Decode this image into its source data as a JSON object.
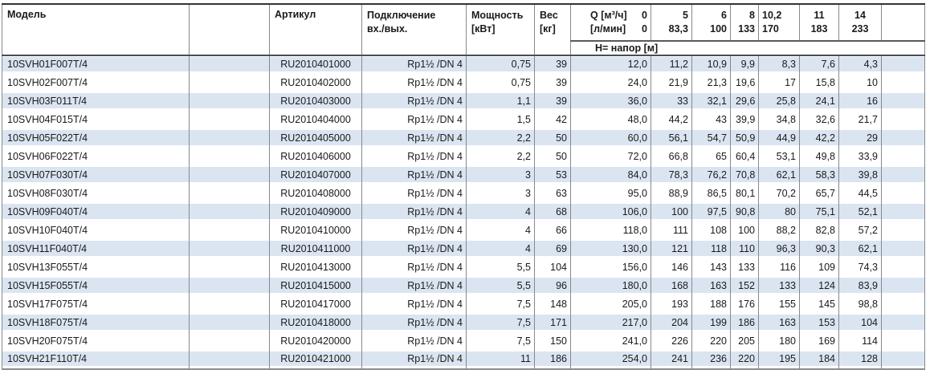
{
  "colors": {
    "stripe": "#dbe5f1",
    "grid": "#85898f",
    "top-line": "#333336",
    "header-line": "#4a4d51",
    "section-line": "#57595c",
    "bottom-line": "#898d92",
    "text": "#1a1a1c"
  },
  "table": {
    "headers": {
      "model": "Модель",
      "article": "Артикул",
      "connection": [
        "Подключение",
        "вх./вых."
      ],
      "power": [
        "Мощность",
        "[кВт]"
      ],
      "weight": [
        "Вес",
        "[кг]"
      ],
      "q_row1": {
        "label": "Q [м³/ч]",
        "value": "0"
      },
      "q_row2": {
        "label": "[л/мин]",
        "value": "0"
      },
      "flow_columns": [
        {
          "m3h": "5",
          "lmin": "83,3"
        },
        {
          "m3h": "6",
          "lmin": "100"
        },
        {
          "m3h": "8",
          "lmin": "133"
        },
        {
          "m3h": "10,2",
          "lmin": "170"
        },
        {
          "m3h": "11",
          "lmin": "183"
        },
        {
          "m3h": "14",
          "lmin": "233"
        }
      ],
      "head_row_label": "H= напор [м]"
    },
    "rows": [
      {
        "model": "10SVH01F007T/4",
        "article": "RU2010401000",
        "connection": "Rp1½ /DN 4",
        "power": "0,75",
        "weight": "39",
        "h": [
          "12,0",
          "11,2",
          "10,9",
          "9,9",
          "8,3",
          "7,6",
          "4,3"
        ]
      },
      {
        "model": "10SVH02F007T/4",
        "article": "RU2010402000",
        "connection": "Rp1½ /DN 4",
        "power": "0,75",
        "weight": "39",
        "h": [
          "24,0",
          "21,9",
          "21,3",
          "19,6",
          "17",
          "15,8",
          "10"
        ]
      },
      {
        "model": "10SVH03F011T/4",
        "article": "RU2010403000",
        "connection": "Rp1½ /DN 4",
        "power": "1,1",
        "weight": "39",
        "h": [
          "36,0",
          "33",
          "32,1",
          "29,6",
          "25,8",
          "24,1",
          "16"
        ]
      },
      {
        "model": "10SVH04F015T/4",
        "article": "RU2010404000",
        "connection": "Rp1½ /DN 4",
        "power": "1,5",
        "weight": "42",
        "h": [
          "48,0",
          "44,2",
          "43",
          "39,9",
          "34,8",
          "32,6",
          "21,7"
        ]
      },
      {
        "model": "10SVH05F022T/4",
        "article": "RU2010405000",
        "connection": "Rp1½ /DN 4",
        "power": "2,2",
        "weight": "50",
        "h": [
          "60,0",
          "56,1",
          "54,7",
          "50,9",
          "44,9",
          "42,2",
          "29"
        ]
      },
      {
        "model": "10SVH06F022T/4",
        "article": "RU2010406000",
        "connection": "Rp1½ /DN 4",
        "power": "2,2",
        "weight": "50",
        "h": [
          "72,0",
          "66,8",
          "65",
          "60,4",
          "53,1",
          "49,8",
          "33,9"
        ]
      },
      {
        "model": "10SVH07F030T/4",
        "article": "RU2010407000",
        "connection": "Rp1½ /DN 4",
        "power": "3",
        "weight": "53",
        "h": [
          "84,0",
          "78,3",
          "76,2",
          "70,8",
          "62,1",
          "58,3",
          "39,8"
        ]
      },
      {
        "model": "10SVH08F030T/4",
        "article": "RU2010408000",
        "connection": "Rp1½ /DN 4",
        "power": "3",
        "weight": "63",
        "h": [
          "95,0",
          "88,9",
          "86,5",
          "80,1",
          "70,2",
          "65,7",
          "44,5"
        ]
      },
      {
        "model": "10SVH09F040T/4",
        "article": "RU2010409000",
        "connection": "Rp1½ /DN 4",
        "power": "4",
        "weight": "68",
        "h": [
          "106,0",
          "100",
          "97,5",
          "90,8",
          "80",
          "75,1",
          "52,1"
        ]
      },
      {
        "model": "10SVH10F040T/4",
        "article": "RU2010410000",
        "connection": "Rp1½ /DN 4",
        "power": "4",
        "weight": "66",
        "h": [
          "118,0",
          "111",
          "108",
          "100",
          "88,2",
          "82,8",
          "57,2"
        ]
      },
      {
        "model": "10SVH11F040T/4",
        "article": "RU2010411000",
        "connection": "Rp1½ /DN 4",
        "power": "4",
        "weight": "69",
        "h": [
          "130,0",
          "121",
          "118",
          "110",
          "96,3",
          "90,3",
          "62,1"
        ]
      },
      {
        "model": "10SVH13F055T/4",
        "article": "RU2010413000",
        "connection": "Rp1½ /DN 4",
        "power": "5,5",
        "weight": "104",
        "h": [
          "156,0",
          "146",
          "143",
          "133",
          "116",
          "109",
          "74,3"
        ]
      },
      {
        "model": "10SVH15F055T/4",
        "article": "RU2010415000",
        "connection": "Rp1½ /DN 4",
        "power": "5,5",
        "weight": "96",
        "h": [
          "180,0",
          "168",
          "163",
          "152",
          "133",
          "124",
          "83,9"
        ]
      },
      {
        "model": "10SVH17F075T/4",
        "article": "RU2010417000",
        "connection": "Rp1½ /DN 4",
        "power": "7,5",
        "weight": "148",
        "h": [
          "205,0",
          "193",
          "188",
          "176",
          "155",
          "145",
          "98,8"
        ]
      },
      {
        "model": "10SVH18F075T/4",
        "article": "RU2010418000",
        "connection": "Rp1½ /DN 4",
        "power": "7,5",
        "weight": "171",
        "h": [
          "217,0",
          "204",
          "199",
          "186",
          "163",
          "153",
          "104"
        ]
      },
      {
        "model": "10SVH20F075T/4",
        "article": "RU2010420000",
        "connection": "Rp1½ /DN 4",
        "power": "7,5",
        "weight": "150",
        "h": [
          "241,0",
          "226",
          "220",
          "205",
          "180",
          "169",
          "114"
        ]
      },
      {
        "model": "10SVH21F110T/4",
        "article": "RU2010421000",
        "connection": "Rp1½ /DN 4",
        "power": "11",
        "weight": "186",
        "h": [
          "254,0",
          "241",
          "236",
          "220",
          "195",
          "184",
          "128"
        ]
      }
    ]
  }
}
